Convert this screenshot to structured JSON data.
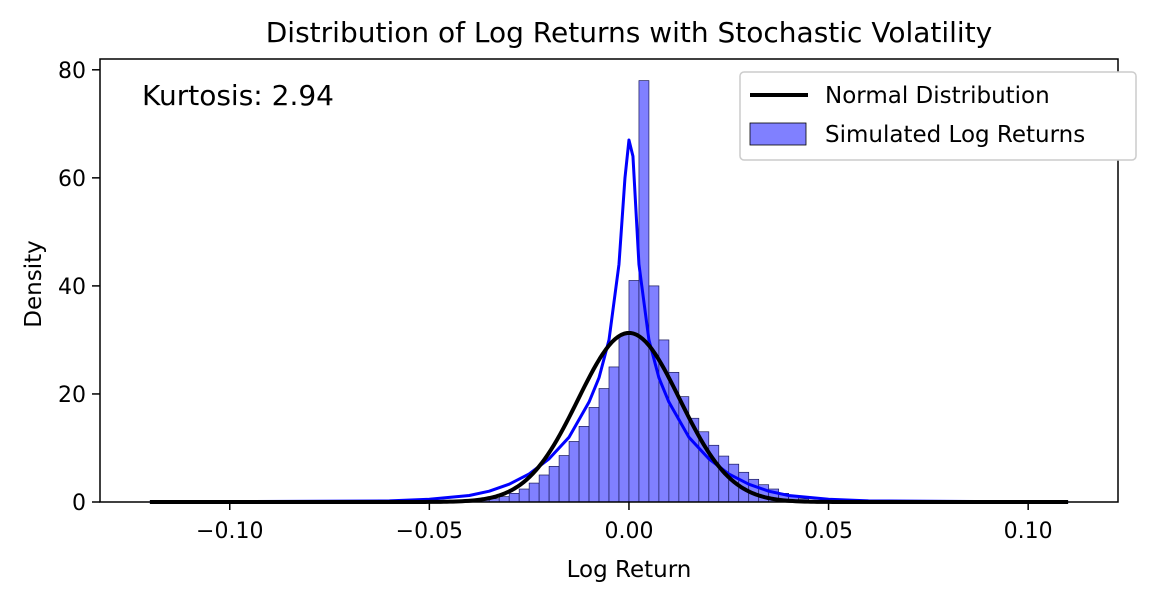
{
  "chart_data": {
    "type": "bar",
    "title": "Distribution of Log Returns with Stochastic Volatility",
    "xlabel": "Log Return",
    "ylabel": "Density",
    "xlim": [
      -0.1325,
      0.1225
    ],
    "ylim": [
      0,
      82
    ],
    "x_ticks": [
      -0.1,
      -0.05,
      0.0,
      0.05,
      0.1
    ],
    "x_tick_labels": [
      "−0.10",
      "−0.05",
      "0.00",
      "0.05",
      "0.10"
    ],
    "y_ticks": [
      0,
      20,
      40,
      60,
      80
    ],
    "y_tick_labels": [
      "0",
      "20",
      "40",
      "60",
      "80"
    ],
    "grid": false,
    "legend_position": "top-right",
    "annotation": "Kurtosis: 2.94",
    "series": [
      {
        "name": "Simulated Log Returns",
        "kind": "histogram",
        "color": "#0000ff",
        "fill": "#8080ff",
        "bin_width": 0.0025,
        "bins": [
          [
            -0.0425,
            0.1
          ],
          [
            -0.04,
            0.1
          ],
          [
            -0.0375,
            0.2
          ],
          [
            -0.035,
            0.4
          ],
          [
            -0.0325,
            0.6
          ],
          [
            -0.03,
            1.0
          ],
          [
            -0.0275,
            1.6
          ],
          [
            -0.025,
            2.4
          ],
          [
            -0.0225,
            3.5
          ],
          [
            -0.02,
            5.0
          ],
          [
            -0.0175,
            6.6
          ],
          [
            -0.015,
            8.6
          ],
          [
            -0.0125,
            11.2
          ],
          [
            -0.01,
            14.0
          ],
          [
            -0.0075,
            17.5
          ],
          [
            -0.005,
            21.0
          ],
          [
            -0.0025,
            25.0
          ],
          [
            0.0,
            31.0
          ],
          [
            0.0025,
            41.0
          ],
          [
            0.005,
            78.0
          ],
          [
            0.0075,
            40.0
          ],
          [
            0.01,
            30.0
          ],
          [
            0.0125,
            24.0
          ],
          [
            0.015,
            19.5
          ],
          [
            0.0175,
            15.5
          ],
          [
            0.02,
            13.0
          ],
          [
            0.0225,
            10.5
          ],
          [
            0.025,
            8.5
          ],
          [
            0.0275,
            7.0
          ],
          [
            0.03,
            5.5
          ],
          [
            0.0325,
            4.2
          ],
          [
            0.035,
            3.2
          ],
          [
            0.0375,
            2.4
          ],
          [
            0.04,
            1.6
          ],
          [
            0.0425,
            1.0
          ],
          [
            0.045,
            0.6
          ],
          [
            0.0475,
            0.3
          ],
          [
            0.05,
            0.1
          ]
        ]
      },
      {
        "name": "",
        "kind": "kde",
        "color": "#0000ff",
        "x": [
          -0.12,
          -0.06,
          -0.05,
          -0.04,
          -0.035,
          -0.03,
          -0.025,
          -0.02,
          -0.015,
          -0.01,
          -0.0075,
          -0.005,
          -0.0025,
          -0.001,
          0.0,
          0.001,
          0.0025,
          0.005,
          0.0075,
          0.01,
          0.015,
          0.02,
          0.025,
          0.03,
          0.035,
          0.04,
          0.05,
          0.06,
          0.11
        ],
        "y": [
          0.0,
          0.2,
          0.5,
          1.2,
          2.0,
          3.3,
          5.2,
          8.0,
          12.0,
          18.5,
          23.0,
          30.0,
          44.0,
          60.0,
          67.0,
          64.0,
          44.0,
          30.0,
          23.0,
          18.5,
          12.0,
          8.0,
          5.2,
          3.3,
          2.0,
          1.2,
          0.5,
          0.2,
          0.0
        ]
      },
      {
        "name": "Normal Distribution",
        "kind": "line",
        "color": "#000000",
        "mean": 0.0,
        "peak": 31.3,
        "x_range": [
          -0.12,
          0.11
        ]
      }
    ],
    "legend": [
      {
        "label": "Normal Distribution",
        "swatch": "line",
        "color": "#000000"
      },
      {
        "label": "Simulated Log Returns",
        "swatch": "patch",
        "color": "#8080ff"
      }
    ]
  }
}
